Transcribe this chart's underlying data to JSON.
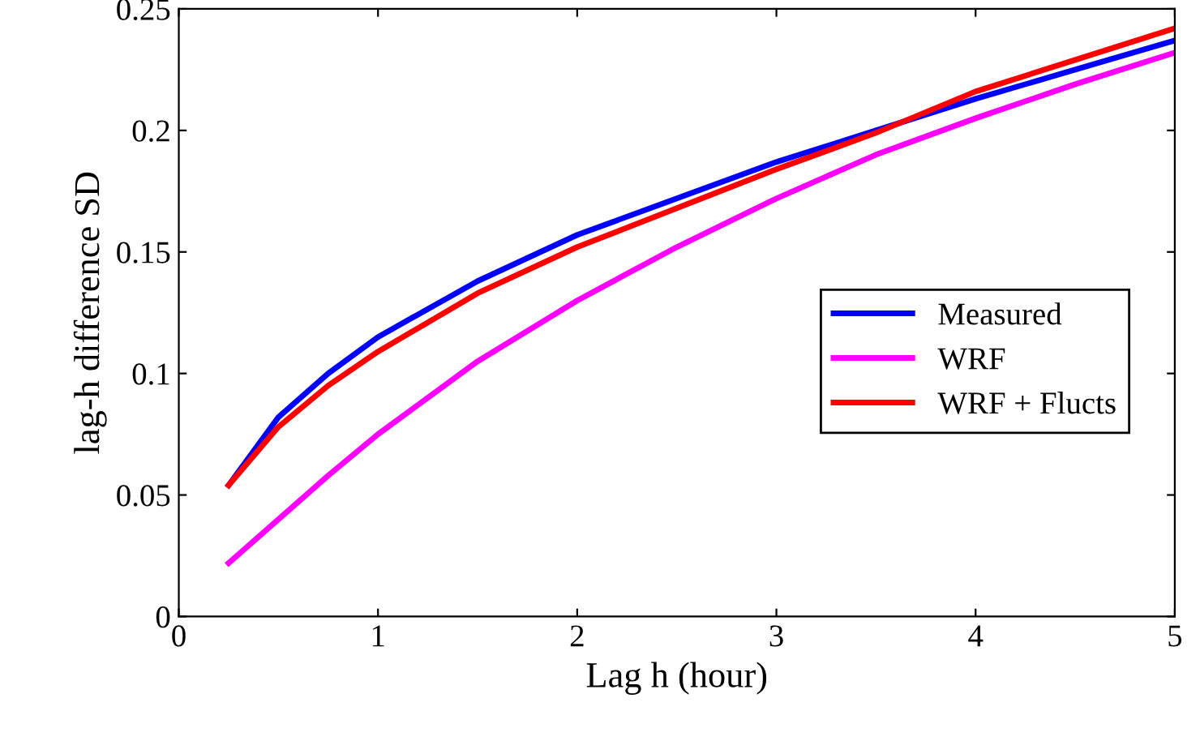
{
  "chart_data": {
    "type": "line",
    "xlabel": "Lag h (hour)",
    "ylabel": "lag-h difference SD",
    "x": [
      0.25,
      0.5,
      0.75,
      1,
      1.5,
      2,
      2.5,
      3,
      3.5,
      4,
      4.5,
      5
    ],
    "series": [
      {
        "name": "Measured",
        "color": "#0000ff",
        "values": [
          0.054,
          0.082,
          0.1,
          0.115,
          0.138,
          0.157,
          0.172,
          0.187,
          0.2,
          0.213,
          0.225,
          0.237
        ]
      },
      {
        "name": "WRF",
        "color": "#ff00ff",
        "values": [
          0.022,
          0.04,
          0.058,
          0.075,
          0.105,
          0.13,
          0.152,
          0.172,
          0.19,
          0.205,
          0.219,
          0.232
        ]
      },
      {
        "name": "WRF + Flucts",
        "color": "#ff0000",
        "values": [
          0.054,
          0.078,
          0.095,
          0.109,
          0.133,
          0.152,
          0.168,
          0.184,
          0.199,
          0.216,
          0.229,
          0.242
        ]
      }
    ],
    "xlim": [
      0,
      5
    ],
    "ylim": [
      0,
      0.25
    ],
    "xticks": [
      0,
      1,
      2,
      3,
      4,
      5
    ],
    "yticks": [
      0,
      0.05,
      0.1,
      0.15,
      0.2,
      0.25
    ],
    "grid": false,
    "legend": "right",
    "marker": "none",
    "line_style": "solid"
  }
}
